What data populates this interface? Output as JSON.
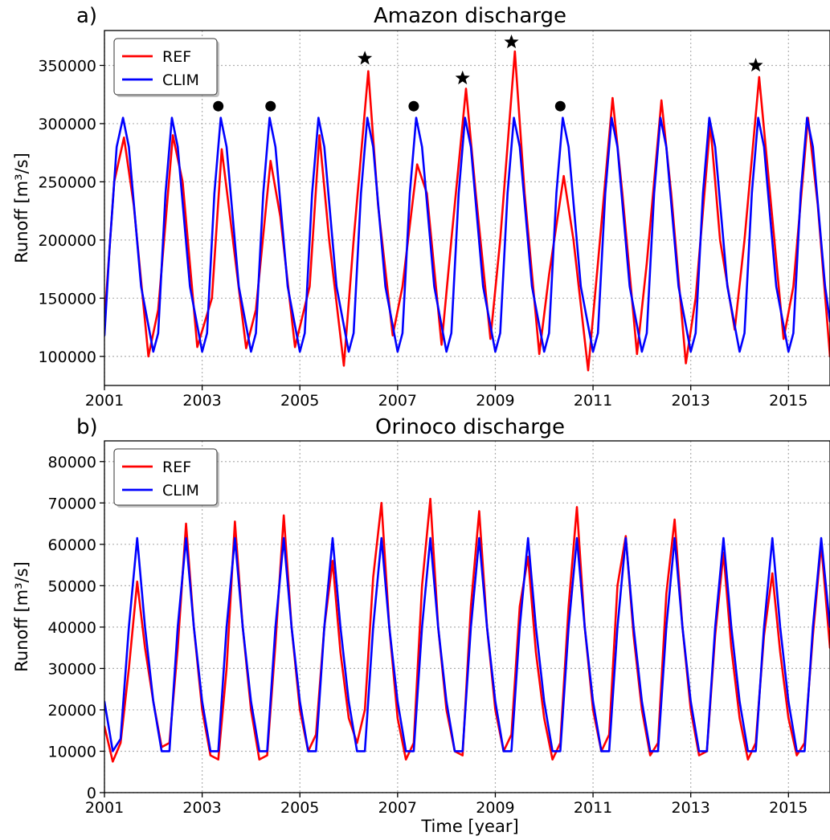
{
  "chart_data": [
    {
      "panel_label": "a)",
      "title": "Amazon discharge",
      "type": "line",
      "ylabel": "Runoff [m³/s]",
      "xlabel": "",
      "xlim": [
        2001,
        2015.85
      ],
      "ylim": [
        75000,
        380000
      ],
      "xticks": [
        2001,
        2003,
        2005,
        2007,
        2009,
        2011,
        2013,
        2015
      ],
      "yticks": [
        100000,
        150000,
        200000,
        250000,
        300000,
        350000
      ],
      "grid": true,
      "legend_position": "top-left",
      "series": [
        {
          "name": "REF",
          "color": "#ff0000",
          "x": [
            2001.0,
            2001.2,
            2001.4,
            2001.6,
            2001.9,
            2002.1,
            2002.4,
            2002.6,
            2002.9,
            2003.2,
            2003.4,
            2003.6,
            2003.9,
            2004.1,
            2004.4,
            2004.6,
            2004.9,
            2005.2,
            2005.4,
            2005.6,
            2005.9,
            2006.1,
            2006.4,
            2006.6,
            2006.9,
            2007.1,
            2007.4,
            2007.6,
            2007.9,
            2008.1,
            2008.4,
            2008.6,
            2008.9,
            2009.1,
            2009.4,
            2009.6,
            2009.9,
            2010.1,
            2010.4,
            2010.6,
            2010.9,
            2011.1,
            2011.4,
            2011.6,
            2011.9,
            2012.1,
            2012.4,
            2012.6,
            2012.9,
            2013.1,
            2013.4,
            2013.6,
            2013.9,
            2014.1,
            2014.4,
            2014.6,
            2014.9,
            2015.1,
            2015.4,
            2015.6,
            2015.85
          ],
          "values": [
            130000,
            250000,
            288000,
            230000,
            100000,
            140000,
            290000,
            250000,
            108000,
            150000,
            278000,
            210000,
            107000,
            140000,
            268000,
            220000,
            108000,
            160000,
            290000,
            200000,
            92000,
            200000,
            345000,
            230000,
            118000,
            160000,
            265000,
            240000,
            110000,
            200000,
            330000,
            240000,
            115000,
            200000,
            362000,
            240000,
            102000,
            170000,
            255000,
            200000,
            88000,
            180000,
            322000,
            240000,
            102000,
            180000,
            320000,
            240000,
            94000,
            150000,
            300000,
            200000,
            123000,
            200000,
            340000,
            250000,
            115000,
            160000,
            305000,
            230000,
            100000
          ]
        },
        {
          "name": "CLIM",
          "color": "#0000ff",
          "x": [
            2001.0,
            2001.1,
            2001.25,
            2001.38,
            2001.5,
            2001.75,
            2002.0,
            2002.1,
            2002.25,
            2002.38,
            2002.5,
            2002.75,
            2003.0,
            2003.1,
            2003.25,
            2003.38,
            2003.5,
            2003.75,
            2004.0,
            2004.1,
            2004.25,
            2004.38,
            2004.5,
            2004.75,
            2005.0,
            2005.1,
            2005.25,
            2005.38,
            2005.5,
            2005.75,
            2006.0,
            2006.1,
            2006.25,
            2006.38,
            2006.5,
            2006.75,
            2007.0,
            2007.1,
            2007.25,
            2007.38,
            2007.5,
            2007.75,
            2008.0,
            2008.1,
            2008.25,
            2008.38,
            2008.5,
            2008.75,
            2009.0,
            2009.1,
            2009.25,
            2009.38,
            2009.5,
            2009.75,
            2010.0,
            2010.1,
            2010.25,
            2010.38,
            2010.5,
            2010.75,
            2011.0,
            2011.1,
            2011.25,
            2011.38,
            2011.5,
            2011.75,
            2012.0,
            2012.1,
            2012.25,
            2012.38,
            2012.5,
            2012.75,
            2013.0,
            2013.1,
            2013.25,
            2013.38,
            2013.5,
            2013.75,
            2014.0,
            2014.1,
            2014.25,
            2014.38,
            2014.5,
            2014.75,
            2015.0,
            2015.1,
            2015.25,
            2015.38,
            2015.5,
            2015.75,
            2015.85
          ],
          "values": [
            118000,
            190000,
            280000,
            305000,
            280000,
            160000,
            104000,
            120000,
            240000,
            305000,
            280000,
            160000,
            104000,
            120000,
            240000,
            305000,
            280000,
            160000,
            104000,
            120000,
            240000,
            305000,
            280000,
            160000,
            104000,
            120000,
            240000,
            305000,
            280000,
            160000,
            104000,
            120000,
            240000,
            305000,
            280000,
            160000,
            104000,
            120000,
            240000,
            305000,
            280000,
            160000,
            104000,
            120000,
            240000,
            305000,
            280000,
            160000,
            104000,
            120000,
            240000,
            305000,
            280000,
            160000,
            104000,
            120000,
            240000,
            305000,
            280000,
            160000,
            104000,
            120000,
            240000,
            305000,
            280000,
            160000,
            104000,
            120000,
            240000,
            305000,
            280000,
            160000,
            104000,
            120000,
            240000,
            305000,
            280000,
            160000,
            104000,
            120000,
            240000,
            305000,
            280000,
            160000,
            104000,
            120000,
            240000,
            305000,
            280000,
            160000,
            130000
          ]
        }
      ],
      "markers": [
        {
          "shape": "circle",
          "x": 2003.33,
          "y": 315000
        },
        {
          "shape": "circle",
          "x": 2004.4,
          "y": 315000
        },
        {
          "shape": "star",
          "x": 2006.33,
          "y": 356000
        },
        {
          "shape": "circle",
          "x": 2007.33,
          "y": 315000
        },
        {
          "shape": "star",
          "x": 2008.33,
          "y": 339000
        },
        {
          "shape": "star",
          "x": 2009.33,
          "y": 370000
        },
        {
          "shape": "circle",
          "x": 2010.33,
          "y": 315000
        },
        {
          "shape": "star",
          "x": 2014.33,
          "y": 350000
        }
      ]
    },
    {
      "panel_label": "b)",
      "title": "Orinoco discharge",
      "type": "line",
      "ylabel": "Runoff [m³/s]",
      "xlabel": "Time [year]",
      "xlim": [
        2001,
        2015.85
      ],
      "ylim": [
        0,
        85000
      ],
      "xticks": [
        2001,
        2003,
        2005,
        2007,
        2009,
        2011,
        2013,
        2015
      ],
      "yticks": [
        0,
        10000,
        20000,
        30000,
        40000,
        50000,
        60000,
        70000,
        80000
      ],
      "grid": true,
      "legend_position": "top-left",
      "series": [
        {
          "name": "REF",
          "color": "#ff0000",
          "x": [
            2001.0,
            2001.17,
            2001.33,
            2001.5,
            2001.67,
            2001.83,
            2002.0,
            2002.17,
            2002.33,
            2002.5,
            2002.67,
            2002.83,
            2003.0,
            2003.17,
            2003.33,
            2003.5,
            2003.67,
            2003.83,
            2004.0,
            2004.17,
            2004.33,
            2004.5,
            2004.67,
            2004.83,
            2005.0,
            2005.17,
            2005.33,
            2005.5,
            2005.67,
            2005.83,
            2006.0,
            2006.17,
            2006.33,
            2006.5,
            2006.67,
            2006.83,
            2007.0,
            2007.17,
            2007.33,
            2007.5,
            2007.67,
            2007.83,
            2008.0,
            2008.17,
            2008.33,
            2008.5,
            2008.67,
            2008.83,
            2009.0,
            2009.17,
            2009.33,
            2009.5,
            2009.67,
            2009.83,
            2010.0,
            2010.17,
            2010.33,
            2010.5,
            2010.67,
            2010.83,
            2011.0,
            2011.17,
            2011.33,
            2011.5,
            2011.67,
            2011.83,
            2012.0,
            2012.17,
            2012.33,
            2012.5,
            2012.67,
            2012.83,
            2013.0,
            2013.17,
            2013.33,
            2013.5,
            2013.67,
            2013.83,
            2014.0,
            2014.17,
            2014.33,
            2014.5,
            2014.67,
            2014.83,
            2015.0,
            2015.17,
            2015.33,
            2015.5,
            2015.67,
            2015.85
          ],
          "values": [
            16000,
            7500,
            12000,
            30000,
            51000,
            35000,
            22000,
            11000,
            12000,
            35000,
            65000,
            40000,
            20000,
            9000,
            8000,
            30000,
            65500,
            40000,
            20000,
            8000,
            9000,
            36000,
            67000,
            40000,
            20000,
            10000,
            14000,
            40000,
            56000,
            34000,
            18000,
            12000,
            20000,
            52000,
            70000,
            40000,
            18000,
            8000,
            12000,
            50000,
            71000,
            40000,
            20000,
            10000,
            9000,
            45000,
            68000,
            40000,
            20000,
            10000,
            14000,
            45000,
            57000,
            34000,
            18000,
            8000,
            12000,
            45000,
            69000,
            40000,
            20000,
            10000,
            14000,
            50000,
            62000,
            38000,
            20000,
            9000,
            12000,
            48000,
            66000,
            40000,
            20000,
            9000,
            10000,
            38000,
            58000,
            35000,
            18000,
            8000,
            12000,
            38000,
            53000,
            34000,
            18000,
            9000,
            12000,
            38000,
            60000,
            35000
          ]
        },
        {
          "name": "CLIM",
          "color": "#0000ff",
          "x": [
            2001.0,
            2001.17,
            2001.33,
            2001.5,
            2001.67,
            2001.83,
            2002.0,
            2002.17,
            2002.33,
            2002.5,
            2002.67,
            2002.83,
            2003.0,
            2003.17,
            2003.33,
            2003.5,
            2003.67,
            2003.83,
            2004.0,
            2004.17,
            2004.33,
            2004.5,
            2004.67,
            2004.83,
            2005.0,
            2005.17,
            2005.33,
            2005.5,
            2005.67,
            2005.83,
            2006.0,
            2006.17,
            2006.33,
            2006.5,
            2006.67,
            2006.83,
            2007.0,
            2007.17,
            2007.33,
            2007.5,
            2007.67,
            2007.83,
            2008.0,
            2008.17,
            2008.33,
            2008.5,
            2008.67,
            2008.83,
            2009.0,
            2009.17,
            2009.33,
            2009.5,
            2009.67,
            2009.83,
            2010.0,
            2010.17,
            2010.33,
            2010.5,
            2010.67,
            2010.83,
            2011.0,
            2011.17,
            2011.33,
            2011.5,
            2011.67,
            2011.83,
            2012.0,
            2012.17,
            2012.33,
            2012.5,
            2012.67,
            2012.83,
            2013.0,
            2013.17,
            2013.33,
            2013.5,
            2013.67,
            2013.83,
            2014.0,
            2014.17,
            2014.33,
            2014.5,
            2014.67,
            2014.83,
            2015.0,
            2015.17,
            2015.33,
            2015.5,
            2015.67,
            2015.85
          ],
          "values": [
            22000,
            10000,
            13000,
            40000,
            61500,
            40000,
            22000,
            10000,
            10000,
            40000,
            61500,
            40000,
            22000,
            10000,
            10000,
            40000,
            61500,
            40000,
            22000,
            10000,
            10000,
            40000,
            61500,
            40000,
            22000,
            10000,
            10000,
            40000,
            61500,
            40000,
            22000,
            10000,
            10000,
            40000,
            61500,
            40000,
            22000,
            10000,
            10000,
            40000,
            61500,
            40000,
            22000,
            10000,
            10000,
            40000,
            61500,
            40000,
            22000,
            10000,
            10000,
            40000,
            61500,
            40000,
            22000,
            10000,
            10000,
            40000,
            61500,
            40000,
            22000,
            10000,
            10000,
            40000,
            61500,
            40000,
            22000,
            10000,
            10000,
            40000,
            61500,
            40000,
            22000,
            10000,
            10000,
            40000,
            61500,
            40000,
            22000,
            10000,
            10000,
            40000,
            61500,
            40000,
            22000,
            10000,
            10000,
            40000,
            61500,
            40000
          ]
        }
      ]
    }
  ]
}
